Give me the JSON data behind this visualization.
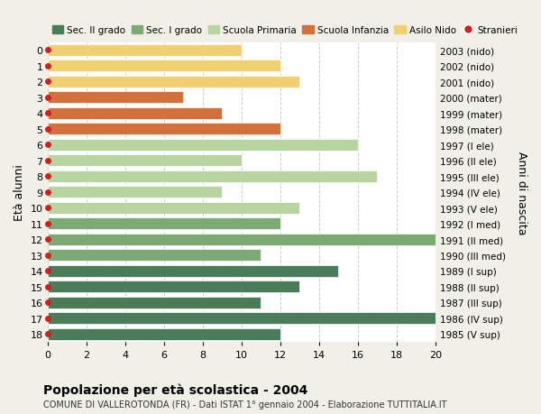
{
  "ages": [
    18,
    17,
    16,
    15,
    14,
    13,
    12,
    11,
    10,
    9,
    8,
    7,
    6,
    5,
    4,
    3,
    2,
    1,
    0
  ],
  "years": [
    "1985 (V sup)",
    "1986 (IV sup)",
    "1987 (III sup)",
    "1988 (II sup)",
    "1989 (I sup)",
    "1990 (III med)",
    "1991 (II med)",
    "1992 (I med)",
    "1993 (V ele)",
    "1994 (IV ele)",
    "1995 (III ele)",
    "1996 (II ele)",
    "1997 (I ele)",
    "1998 (mater)",
    "1999 (mater)",
    "2000 (mater)",
    "2001 (nido)",
    "2002 (nido)",
    "2003 (nido)"
  ],
  "values": [
    12,
    20,
    11,
    13,
    15,
    11,
    20,
    12,
    13,
    9,
    17,
    10,
    16,
    12,
    9,
    7,
    13,
    12,
    10
  ],
  "colors": [
    "#4a7c59",
    "#4a7c59",
    "#4a7c59",
    "#4a7c59",
    "#4a7c59",
    "#7daa72",
    "#7daa72",
    "#7daa72",
    "#b8d4a0",
    "#b8d4a0",
    "#b8d4a0",
    "#b8d4a0",
    "#b8d4a0",
    "#d4713a",
    "#d4713a",
    "#d4713a",
    "#f0d070",
    "#f0d070",
    "#f0d070"
  ],
  "stranieri_color": "#cc2222",
  "legend_labels": [
    "Sec. II grado",
    "Sec. I grado",
    "Scuola Primaria",
    "Scuola Infanzia",
    "Asilo Nido",
    "Stranieri"
  ],
  "legend_colors": [
    "#4a7c59",
    "#7daa72",
    "#b8d4a0",
    "#d4713a",
    "#f0d070",
    "#cc2222"
  ],
  "ylabel": "Età alunni",
  "ylabel_right": "Anni di nascita",
  "title": "Popolazione per età scolastica - 2004",
  "subtitle": "COMUNE DI VALLEROTONDA (FR) - Dati ISTAT 1° gennaio 2004 - Elaborazione TUTTITALIA.IT",
  "xlim": [
    0,
    20
  ],
  "xticks": [
    0,
    2,
    4,
    6,
    8,
    10,
    12,
    14,
    16,
    18,
    20
  ],
  "background_color": "#f0f0e8",
  "bar_background": "#ffffff",
  "grid_color": "#cccccc"
}
